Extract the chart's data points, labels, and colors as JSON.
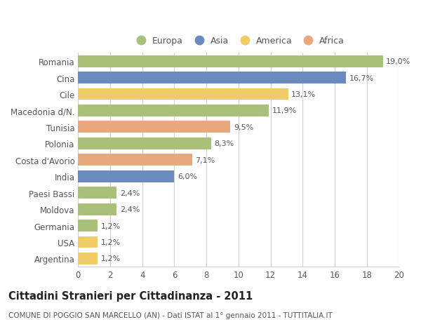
{
  "countries": [
    "Romania",
    "Cina",
    "Cile",
    "Macedonia d/N.",
    "Tunisia",
    "Polonia",
    "Costa d'Avorio",
    "India",
    "Paesi Bassi",
    "Moldova",
    "Germania",
    "USA",
    "Argentina"
  ],
  "values": [
    19.0,
    16.7,
    13.1,
    11.9,
    9.5,
    8.3,
    7.1,
    6.0,
    2.4,
    2.4,
    1.2,
    1.2,
    1.2
  ],
  "labels": [
    "19,0%",
    "16,7%",
    "13,1%",
    "11,9%",
    "9,5%",
    "8,3%",
    "7,1%",
    "6,0%",
    "2,4%",
    "2,4%",
    "1,2%",
    "1,2%",
    "1,2%"
  ],
  "continents": [
    "Europa",
    "Asia",
    "America",
    "Europa",
    "Africa",
    "Europa",
    "Africa",
    "Asia",
    "Europa",
    "Europa",
    "Europa",
    "America",
    "America"
  ],
  "colors": {
    "Europa": "#a8c07a",
    "Asia": "#6b8bbf",
    "America": "#f0cb6a",
    "Africa": "#e8a87c"
  },
  "legend_order": [
    "Europa",
    "Asia",
    "America",
    "Africa"
  ],
  "xlim": [
    0,
    20
  ],
  "xticks": [
    0,
    2,
    4,
    6,
    8,
    10,
    12,
    14,
    16,
    18,
    20
  ],
  "title": "Cittadini Stranieri per Cittadinanza - 2011",
  "subtitle": "COMUNE DI POGGIO SAN MARCELLO (AN) - Dati ISTAT al 1° gennaio 2011 - TUTTITALIA.IT",
  "background_color": "#ffffff",
  "grid_color": "#d0d0d0",
  "bar_height": 0.72,
  "title_fontsize": 10.5,
  "subtitle_fontsize": 7.5,
  "label_fontsize": 8,
  "ytick_fontsize": 8.5,
  "xtick_fontsize": 8.5,
  "legend_fontsize": 9
}
